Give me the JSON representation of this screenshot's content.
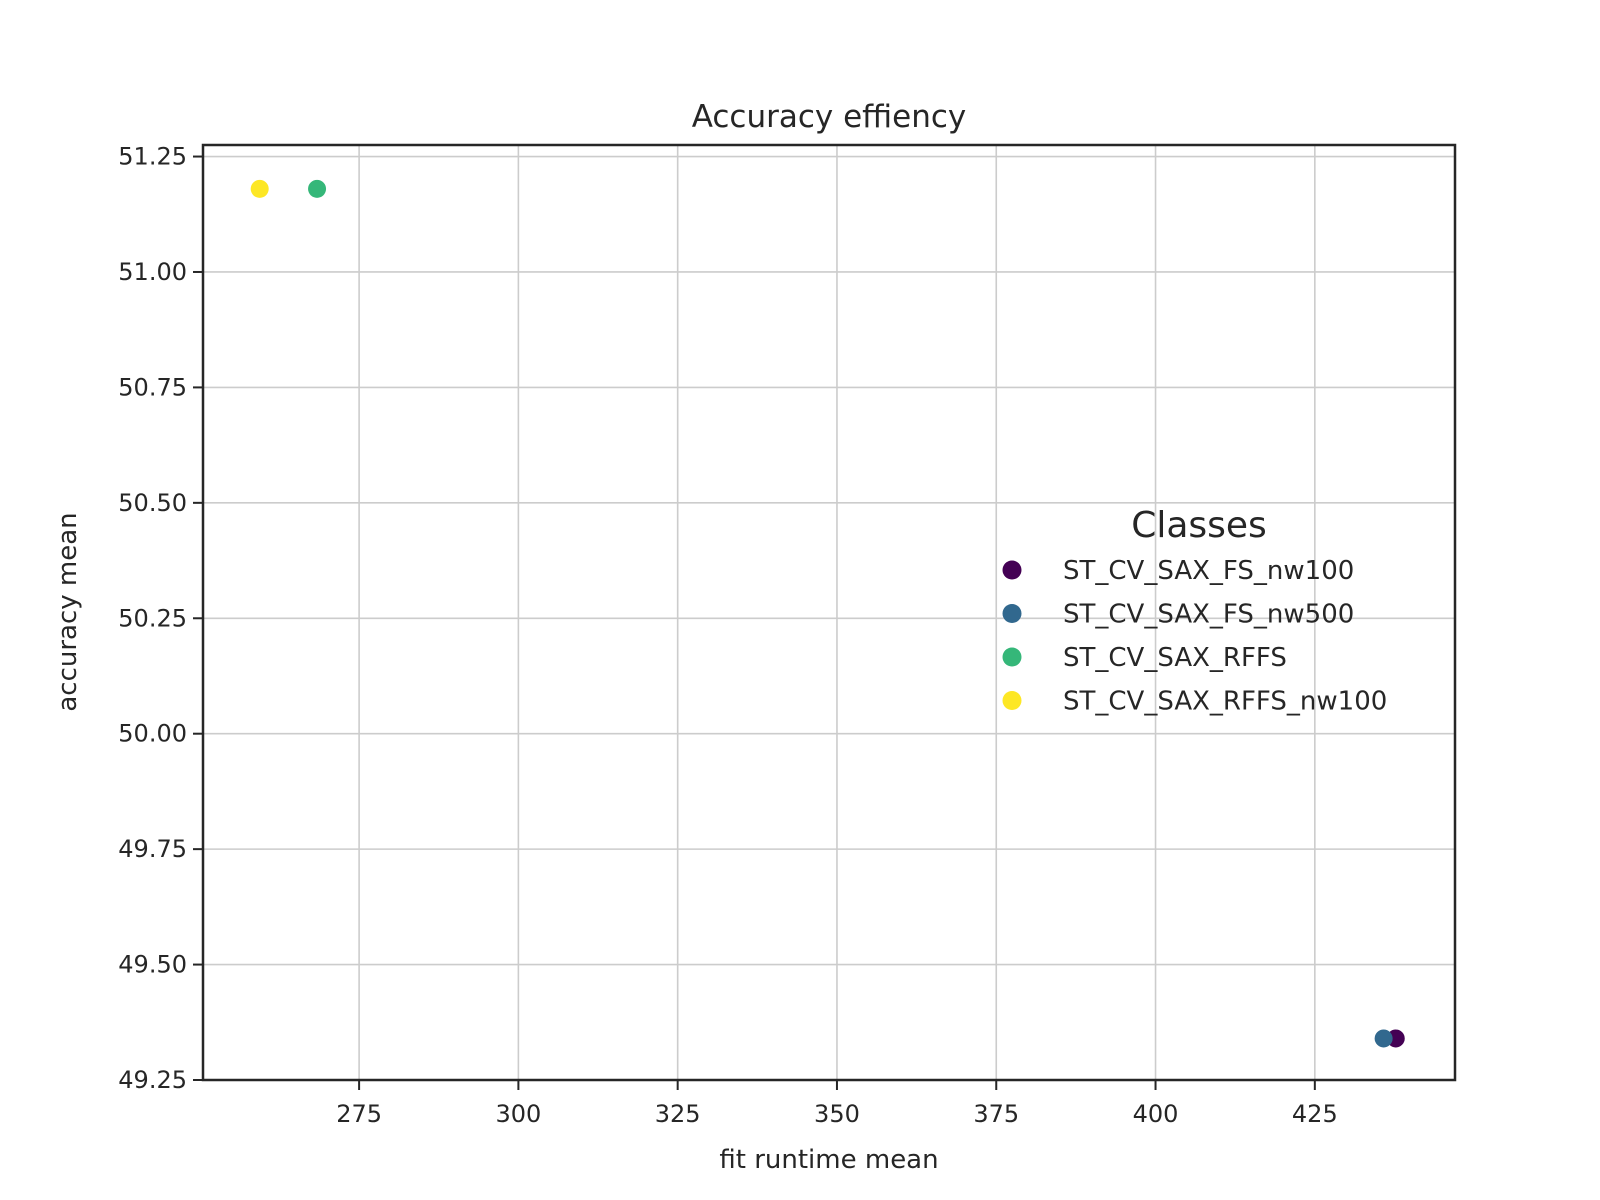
{
  "chart_data": {
    "type": "scatter",
    "title": "Accuracy effiency",
    "xlabel": "fit runtime mean",
    "ylabel": "accuracy mean",
    "xlim": [
      250.5,
      447
    ],
    "ylim": [
      49.25,
      51.275
    ],
    "x_ticks": [
      275,
      300,
      325,
      350,
      375,
      400,
      425
    ],
    "x_tick_labels": [
      "275",
      "300",
      "325",
      "350",
      "375",
      "400",
      "425"
    ],
    "y_ticks": [
      49.25,
      49.5,
      49.75,
      50.0,
      50.25,
      50.5,
      50.75,
      51.0,
      51.25
    ],
    "y_tick_labels": [
      "49.25",
      "49.50",
      "49.75",
      "50.00",
      "50.25",
      "50.50",
      "50.75",
      "51.00",
      "51.25"
    ],
    "grid": true,
    "legend": {
      "title": "Classes",
      "placement": "center-right"
    },
    "series": [
      {
        "name": "ST_CV_SAX_FS_nw100",
        "color": "#440154",
        "points": [
          {
            "x": 437.7,
            "y": 49.34
          }
        ]
      },
      {
        "name": "ST_CV_SAX_FS_nw500",
        "color": "#31688e",
        "points": [
          {
            "x": 435.8,
            "y": 49.34
          }
        ]
      },
      {
        "name": "ST_CV_SAX_RFFS",
        "color": "#35b779",
        "points": [
          {
            "x": 268.4,
            "y": 51.18
          }
        ]
      },
      {
        "name": "ST_CV_SAX_RFFS_nw100",
        "color": "#fde725",
        "points": [
          {
            "x": 259.4,
            "y": 51.18
          }
        ]
      }
    ]
  }
}
